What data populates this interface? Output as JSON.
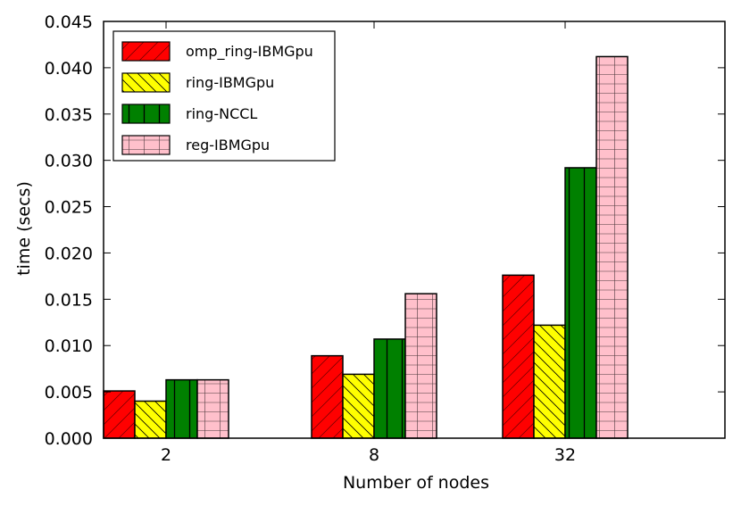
{
  "chart_data": {
    "type": "bar",
    "title": "",
    "xlabel": "Number of nodes",
    "ylabel": "time (secs)",
    "categories": [
      "2",
      "8",
      "32"
    ],
    "ylim": [
      0,
      0.045
    ],
    "yticks": [
      "0.000",
      "0.005",
      "0.010",
      "0.015",
      "0.020",
      "0.025",
      "0.030",
      "0.035",
      "0.040",
      "0.045"
    ],
    "legend_position": "top-left",
    "series": [
      {
        "name": "omp_ring-IBMGpu",
        "color": "#ff0000",
        "hatch": "diagonal-forward",
        "values": [
          0.0051,
          0.0089,
          0.0176
        ]
      },
      {
        "name": "ring-IBMGpu",
        "color": "#ffff00",
        "hatch": "diagonal-back",
        "values": [
          0.004,
          0.0069,
          0.0122
        ]
      },
      {
        "name": "ring-NCCL",
        "color": "#008000",
        "hatch": "vertical",
        "values": [
          0.0063,
          0.0107,
          0.0292
        ]
      },
      {
        "name": "reg-IBMGpu",
        "color": "#ffc0cb",
        "hatch": "grid",
        "values": [
          0.0063,
          0.0156,
          0.0412
        ]
      }
    ]
  }
}
